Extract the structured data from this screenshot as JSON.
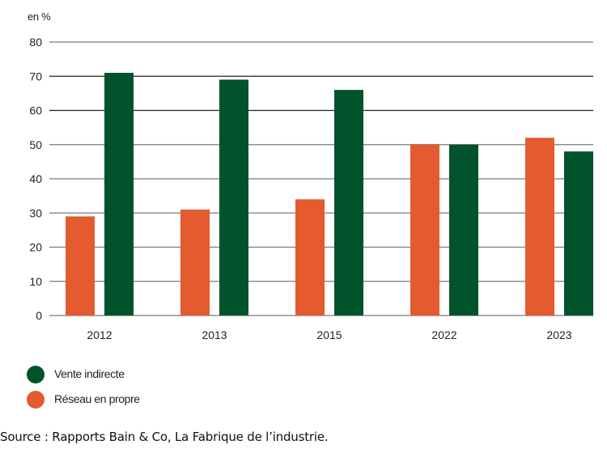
{
  "chart_data": {
    "type": "bar",
    "unit_label": "en %",
    "categories": [
      "2012",
      "2013",
      "2015",
      "2022",
      "2023"
    ],
    "series": [
      {
        "name": "Réseau en propre",
        "color": "#e35b2f",
        "values": [
          29,
          31,
          34,
          50,
          52
        ]
      },
      {
        "name": "Vente indirecte",
        "color": "#00532b",
        "values": [
          71,
          69,
          66,
          50,
          48
        ]
      }
    ],
    "yticks": [
      0,
      10,
      20,
      30,
      40,
      50,
      60,
      70,
      80
    ],
    "ylim": [
      0,
      80
    ],
    "grid": true,
    "legend_position": "bottom-left",
    "legend": [
      {
        "label": "Vente indirecte",
        "color": "#00532b"
      },
      {
        "label": "Réseau en propre",
        "color": "#e35b2f"
      }
    ],
    "title": "",
    "xlabel": "",
    "ylabel": "en %"
  },
  "source": "Source : Rapports Bain & Co, La Fabrique de l’industrie."
}
